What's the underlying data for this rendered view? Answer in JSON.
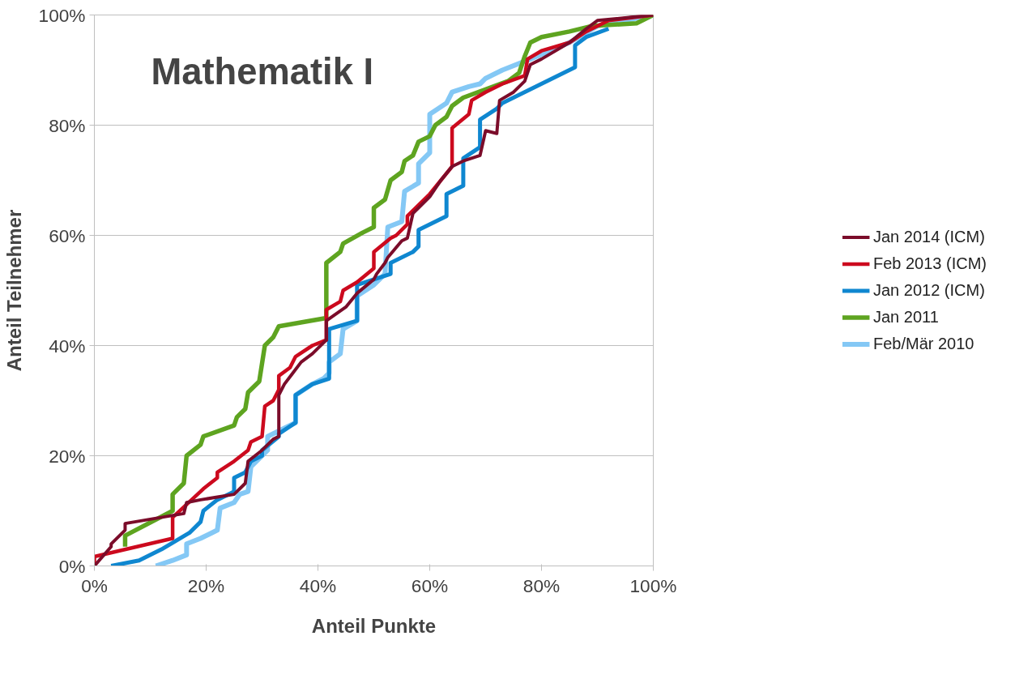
{
  "chart_data": {
    "type": "line",
    "title": "Mathematik I",
    "xlabel": "Anteil Punkte",
    "ylabel": "Anteil Teilnehmer",
    "xlim": [
      0,
      100
    ],
    "ylim": [
      0,
      100
    ],
    "xticks": [
      {
        "value": 0,
        "label": "0%"
      },
      {
        "value": 20,
        "label": "20%"
      },
      {
        "value": 40,
        "label": "40%"
      },
      {
        "value": 60,
        "label": "60%"
      },
      {
        "value": 80,
        "label": "80%"
      },
      {
        "value": 100,
        "label": "100%"
      }
    ],
    "yticks": [
      {
        "value": 0,
        "label": "0%"
      },
      {
        "value": 20,
        "label": "20%"
      },
      {
        "value": 40,
        "label": "40%"
      },
      {
        "value": 60,
        "label": "60%"
      },
      {
        "value": 80,
        "label": "80%"
      },
      {
        "value": 100,
        "label": "100%"
      }
    ],
    "grid": "y",
    "legend": "right",
    "marker": "none",
    "line_style": "solid",
    "series": [
      {
        "name": "Jan 2014 (ICM)",
        "color": "#7b0c2a",
        "x": [
          0,
          3,
          3,
          5.5,
          5.5,
          16,
          16.5,
          19,
          22,
          25,
          27,
          27.5,
          30,
          32,
          33,
          33,
          34,
          35.5,
          37,
          39,
          41.5,
          41.5,
          45,
          47,
          50,
          50.5,
          52,
          52.5,
          55,
          56,
          57,
          60,
          62,
          64,
          66,
          69,
          70,
          72,
          72.5,
          75,
          77,
          78,
          80,
          85,
          88,
          90,
          100
        ],
        "values": [
          0,
          3.5,
          4,
          6.5,
          7.7,
          9.5,
          11.5,
          12,
          12.5,
          13,
          15,
          19,
          21,
          23,
          23.5,
          31,
          33,
          35,
          37,
          38.5,
          41,
          44.5,
          47,
          49.5,
          52,
          53,
          55,
          56,
          59,
          59.5,
          64,
          67,
          70,
          72.5,
          73.5,
          74.5,
          79,
          78.5,
          84.5,
          86,
          88,
          91,
          92,
          95,
          97.5,
          99,
          100
        ]
      },
      {
        "name": "Feb 2013 (ICM)",
        "color": "#cc0a1e",
        "x": [
          0,
          0,
          14,
          14,
          19,
          19.5,
          22,
          22,
          25,
          27.5,
          28,
          30,
          30.5,
          32,
          33,
          33,
          35,
          36,
          39,
          41.5,
          41.5,
          44,
          44.5,
          47,
          50,
          50,
          53,
          54,
          56,
          56,
          58,
          60,
          62,
          64,
          64,
          67,
          67.5,
          70,
          73,
          77,
          77.5,
          80,
          85,
          88,
          92,
          100
        ],
        "values": [
          0.5,
          1.7,
          5,
          8.8,
          13.5,
          14,
          16,
          17,
          19,
          21,
          22.5,
          23.5,
          29,
          30,
          32,
          34.5,
          36,
          38,
          40,
          41,
          46.5,
          48,
          50,
          51.5,
          54,
          57,
          59.5,
          60,
          62,
          63.5,
          65.5,
          67.5,
          70,
          72.5,
          79.5,
          82,
          84.5,
          86,
          87.5,
          89,
          92,
          93.5,
          95,
          97,
          99,
          100
        ]
      },
      {
        "name": "Jan 2012 (ICM)",
        "color": "#0f87d0",
        "x": [
          3,
          8,
          12,
          17,
          19,
          19.5,
          22,
          25,
          25,
          27,
          28,
          30,
          30,
          33,
          33,
          36,
          36,
          39,
          42,
          42,
          47,
          47,
          50,
          53,
          53,
          57,
          58,
          58,
          63,
          63,
          66,
          66,
          69,
          69,
          72,
          73,
          86,
          86,
          88,
          92
        ],
        "values": [
          0,
          1,
          3,
          6,
          8,
          10,
          12,
          13.5,
          16,
          17,
          19,
          20,
          21,
          23.5,
          24,
          26,
          31,
          33,
          34,
          43,
          44.5,
          51,
          52,
          53,
          55,
          57,
          58,
          61,
          63.5,
          67.5,
          69,
          74,
          76,
          81,
          83,
          84,
          90.5,
          94.5,
          96,
          97.5
        ]
      },
      {
        "name": "Jan 2011",
        "color": "#5ea420",
        "x": [
          5.5,
          5.5,
          14,
          14,
          16,
          16.5,
          19,
          19.5,
          25,
          25.5,
          27,
          27.5,
          29.5,
          30.5,
          32,
          33,
          41.5,
          41.5,
          44,
          44.5,
          48,
          50,
          50,
          52,
          53,
          55,
          55.5,
          57,
          58,
          60,
          61,
          63,
          64,
          66,
          70,
          74,
          76,
          77,
          78,
          80,
          85,
          89,
          97,
          100
        ],
        "values": [
          3.5,
          5.5,
          10,
          13,
          15,
          20,
          22,
          23.5,
          25.5,
          27,
          28.5,
          31.5,
          33.5,
          40,
          41.5,
          43.5,
          45,
          55,
          57,
          58.5,
          60.5,
          61.5,
          65,
          66.5,
          70,
          71.5,
          73.5,
          74.5,
          77,
          78,
          80,
          81.5,
          83.5,
          85,
          86.5,
          88,
          89.5,
          92.5,
          95,
          96,
          97,
          98,
          98.5,
          100
        ]
      },
      {
        "name": "Feb/Mär 2010",
        "color": "#84c8f5",
        "x": [
          11,
          14,
          16.5,
          16.5,
          19,
          21,
          22,
          22.5,
          25,
          26,
          27.5,
          28,
          31,
          31,
          34,
          36,
          36,
          39,
          41,
          42,
          42,
          44,
          44.5,
          47,
          47,
          50,
          52,
          52.5,
          55,
          55.5,
          58,
          58,
          60,
          60,
          63,
          64,
          67,
          69,
          70,
          73,
          78,
          85,
          90,
          100
        ],
        "values": [
          0,
          1,
          2,
          4,
          5,
          6,
          6.5,
          10.5,
          11.5,
          13,
          13.5,
          18,
          21,
          23.5,
          25,
          26,
          31,
          33,
          34,
          35,
          37,
          38.5,
          43,
          44.5,
          49,
          51,
          53,
          61.5,
          62.5,
          68,
          69.5,
          73,
          75,
          82,
          84,
          86,
          87,
          87.5,
          88.5,
          90,
          92,
          95,
          98,
          100
        ]
      }
    ]
  }
}
